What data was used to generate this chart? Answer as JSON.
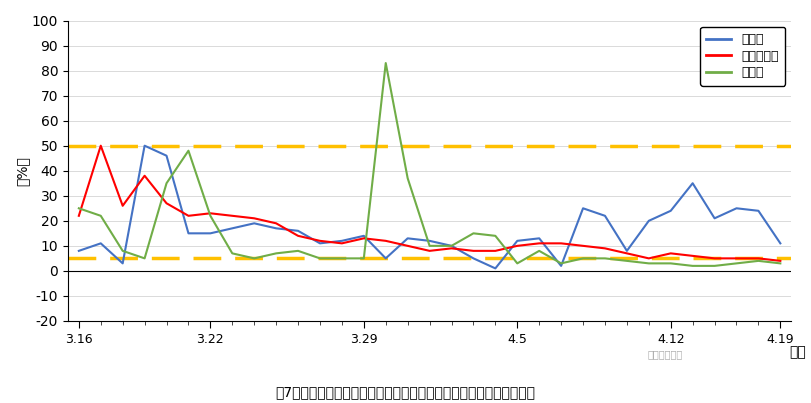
{
  "title": "图7：新加坡、印度尼西亚和菲律宾新冠肺炎现存确诊病例增幅走势图",
  "ylabel": "（%）",
  "xlabel": "日期",
  "ylim": [
    -20,
    100
  ],
  "yticks": [
    -20,
    -10,
    0,
    10,
    20,
    30,
    40,
    50,
    60,
    70,
    80,
    90,
    100
  ],
  "hline_upper": 50,
  "hline_lower": 5,
  "legend": [
    "新加坡",
    "印度尼西亚",
    "菲律宾"
  ],
  "colors": [
    "#4472C4",
    "#FF0000",
    "#70AD47"
  ],
  "xtick_labels": [
    "3.16",
    "3.22",
    "3.29",
    "4.5",
    "4.12",
    "4.19"
  ],
  "watermark": "维润赛润资讯",
  "singapore": [
    8,
    11,
    3,
    50,
    46,
    15,
    15,
    17,
    19,
    17,
    16,
    11,
    12,
    14,
    5,
    13,
    12,
    10,
    5,
    1,
    12,
    13,
    2,
    25,
    22,
    8,
    20,
    24,
    35,
    21,
    25,
    24,
    11
  ],
  "indonesia": [
    22,
    50,
    26,
    38,
    27,
    22,
    23,
    22,
    21,
    19,
    14,
    12,
    11,
    13,
    12,
    10,
    8,
    9,
    8,
    8,
    10,
    11,
    11,
    10,
    9,
    7,
    5,
    7,
    6,
    5,
    5,
    5,
    4
  ],
  "philippines": [
    25,
    22,
    8,
    5,
    35,
    48,
    22,
    7,
    5,
    7,
    8,
    5,
    5,
    5,
    83,
    37,
    10,
    10,
    15,
    14,
    3,
    8,
    3,
    5,
    5,
    4,
    3,
    3,
    2,
    2,
    3,
    4,
    3
  ],
  "n_points": 33
}
